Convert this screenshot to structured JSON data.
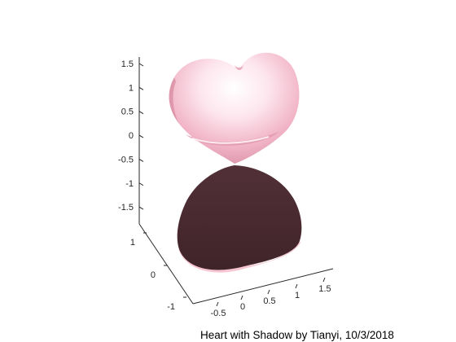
{
  "chart_data": {
    "type": "surface3d",
    "caption": "Heart with Shadow by Tianyi, 10/3/2018",
    "series": [
      {
        "value": "heart surface",
        "color": "#f4b8c8",
        "highlight": "#ffffff"
      },
      {
        "value": "shadow projection",
        "color": "#4a2a30"
      }
    ],
    "axes": {
      "z": {
        "ticks": [
          "1.5",
          "1",
          "0.5",
          "0",
          "-0.5",
          "-1",
          "-1.5"
        ],
        "range": [
          -1.8,
          1.8
        ]
      },
      "y": {
        "ticks": [
          "1",
          "0",
          "-1"
        ],
        "range": [
          -1.2,
          1.2
        ]
      },
      "x": {
        "ticks": [
          "-0.5",
          "0",
          "0.5",
          "1",
          "1.5"
        ],
        "range": [
          -0.8,
          1.7
        ]
      }
    },
    "grid": false,
    "background": "#ffffff"
  }
}
